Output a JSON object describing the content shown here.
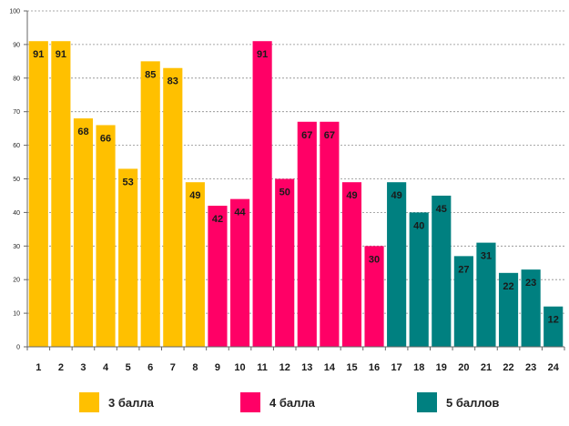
{
  "chart_data": {
    "type": "bar",
    "title": "",
    "xlabel": "",
    "ylabel": "",
    "ylim": [
      0,
      100
    ],
    "yticks": [
      0,
      10,
      20,
      30,
      40,
      50,
      60,
      70,
      80,
      90,
      100
    ],
    "grid": true,
    "categories": [
      "1",
      "2",
      "3",
      "4",
      "5",
      "6",
      "7",
      "8",
      "9",
      "10",
      "11",
      "12",
      "13",
      "14",
      "15",
      "16",
      "17",
      "18",
      "19",
      "20",
      "21",
      "22",
      "23",
      "24"
    ],
    "values": [
      91,
      91,
      68,
      66,
      53,
      85,
      83,
      49,
      42,
      44,
      91,
      50,
      67,
      67,
      49,
      30,
      49,
      40,
      45,
      27,
      31,
      22,
      23,
      12
    ],
    "groups": [
      0,
      0,
      0,
      0,
      0,
      0,
      0,
      0,
      1,
      1,
      1,
      1,
      1,
      1,
      1,
      1,
      2,
      2,
      2,
      2,
      2,
      2,
      2,
      2
    ],
    "legend_position": "bottom",
    "series": [
      {
        "name": "3 балла",
        "color": "#FFC000"
      },
      {
        "name": "4 балла",
        "color": "#FF0066"
      },
      {
        "name": "5 баллов",
        "color": "#008080"
      }
    ]
  }
}
